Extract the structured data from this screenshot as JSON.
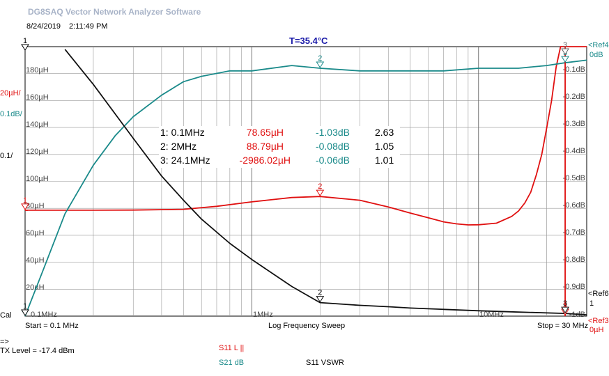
{
  "app": {
    "title": "DG8SAQ Vector Network Analyzer Software",
    "date": "8/24/2019",
    "time": "2:11:49 PM",
    "temperature": "T=35.4°C"
  },
  "left_scale": {
    "units": [
      "20µH/",
      "0.1dB/",
      "0.1/"
    ],
    "ticks": [
      "180µH",
      "160µH",
      "140µH",
      "120µH",
      "100µH",
      "80µH",
      "60µH",
      "40µH",
      "20µH"
    ],
    "cal_label": "Cal"
  },
  "right_scale": {
    "ticks": [
      "-0.1dB",
      "-0.2dB",
      "-0.3dB",
      "-0.4dB",
      "-0.5dB",
      "-0.6dB",
      "-0.7dB",
      "-0.8dB",
      "-0.9dB",
      "-1dB"
    ],
    "ref4": "<Ref4",
    "ref4_val": "0dB",
    "ref6": "<Ref6",
    "ref6_val": "1",
    "ref3": "<Ref3",
    "ref3_val": "0µH"
  },
  "x_axis": {
    "tick_labels": [
      "0.1MHz",
      "1MHz",
      "10MHz"
    ],
    "start": "Start = 0.1 MHz",
    "mode": "Log Frequency Sweep",
    "stop": "Stop = 30 MHz"
  },
  "marker_table": [
    {
      "id": "1: 0.1MHz",
      "l": "78.65µH",
      "db": "-1.03dB",
      "vswr": "2.63"
    },
    {
      "id": "2: 2MHz",
      "l": "88.79µH",
      "db": "-0.08dB",
      "vswr": "1.05"
    },
    {
      "id": "3: 24.1MHz",
      "l": "-2986.02µH",
      "db": "-0.06dB",
      "vswr": "1.01"
    }
  ],
  "footer": {
    "arrow": "=>",
    "tx_level": "TX Level = -17.4 dBm",
    "legend_l": "S11  L ||",
    "legend_db": "S21  dB",
    "legend_vswr": "S11  VSWR"
  },
  "colors": {
    "l": "#e01010",
    "db": "#1a8a8a",
    "vswr": "#101010",
    "title": "#1a1aa8",
    "grid": "#999999"
  },
  "chart_data": {
    "type": "line",
    "x_scale": "log",
    "xlim": [
      0.1,
      30
    ],
    "x_unit": "MHz",
    "series": [
      {
        "name": "S11  L ||",
        "axis": "inductance",
        "ylim": [
          0,
          200
        ],
        "unit": "µH",
        "x": [
          0.1,
          0.15,
          0.2,
          0.3,
          0.5,
          0.7,
          1,
          1.5,
          2,
          3,
          4,
          5,
          6,
          7,
          8,
          9,
          10,
          12,
          14,
          15,
          16,
          17,
          18,
          19,
          20,
          21,
          22,
          23,
          24,
          25,
          30
        ],
        "y": [
          78.6,
          78.6,
          78.6,
          78.7,
          79.3,
          81.5,
          84.8,
          88.0,
          88.8,
          86.0,
          81.0,
          76.5,
          73.0,
          70.0,
          68.5,
          67.7,
          67.8,
          69.0,
          74.0,
          78.0,
          84.0,
          92.0,
          105.0,
          120.0,
          140.0,
          160.0,
          185.0,
          200.0,
          200.0,
          200.0,
          200.0
        ]
      },
      {
        "name": "S21  dB",
        "axis": "dB",
        "ylim": [
          -1,
          0
        ],
        "unit": "dB",
        "x": [
          0.1,
          0.12,
          0.15,
          0.2,
          0.25,
          0.3,
          0.4,
          0.5,
          0.6,
          0.8,
          1,
          1.5,
          2,
          3,
          4,
          5,
          7,
          10,
          15,
          20,
          24,
          30
        ],
        "y": [
          -1.03,
          -0.83,
          -0.62,
          -0.44,
          -0.33,
          -0.26,
          -0.18,
          -0.13,
          -0.11,
          -0.09,
          -0.09,
          -0.07,
          -0.08,
          -0.09,
          -0.09,
          -0.09,
          -0.09,
          -0.08,
          -0.08,
          -0.07,
          -0.06,
          -0.05
        ]
      },
      {
        "name": "S11  VSWR",
        "axis": "VSWR",
        "ylim": [
          1,
          2
        ],
        "unit": "",
        "x": [
          0.15,
          0.2,
          0.3,
          0.4,
          0.5,
          0.6,
          0.8,
          1,
          1.5,
          2,
          3,
          4,
          5,
          7,
          10,
          15,
          24,
          30
        ],
        "y": [
          1.99,
          1.86,
          1.66,
          1.52,
          1.43,
          1.36,
          1.27,
          1.21,
          1.11,
          1.05,
          1.04,
          1.035,
          1.03,
          1.025,
          1.02,
          1.015,
          1.01,
          1.005
        ]
      }
    ],
    "markers": [
      {
        "label": "1",
        "x": 0.1
      },
      {
        "label": "2",
        "x": 2
      },
      {
        "label": "3",
        "x": 24.1
      }
    ],
    "ref_line_x": 24.1
  }
}
